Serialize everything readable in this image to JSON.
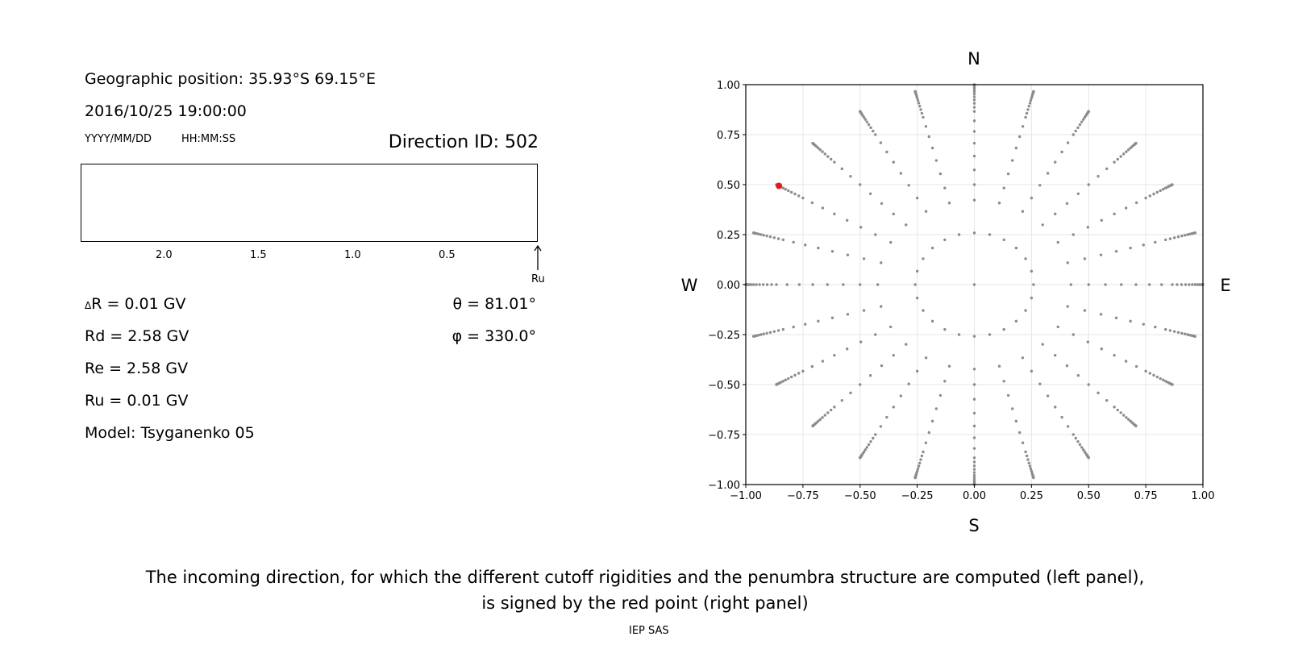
{
  "left_panel": {
    "geo_position": "Geographic position: 35.93°S 69.15°E",
    "datetime": "2016/10/25 19:00:00",
    "date_format": "YYYY/MM/DD",
    "time_format": "HH:MM:SS",
    "direction_id": "Direction ID: 502",
    "axis_ticks": [
      "2.0",
      "1.5",
      "1.0",
      "0.5"
    ],
    "ru_marker_label": "Ru",
    "delta_r_symbol": "Δ",
    "delta_r": "R = 0.01 GV",
    "rd": "Rd = 2.58 GV",
    "re": "Re = 2.58 GV",
    "ru": "Ru = 0.01 GV",
    "model": "Model: Tsyganenko 05",
    "theta": "θ = 81.01°",
    "phi": "φ = 330.0°"
  },
  "chart_data": {
    "type": "scatter",
    "xlim": [
      -1.0,
      1.0
    ],
    "ylim": [
      -1.0,
      1.0
    ],
    "x_ticks": [
      "−1.00",
      "−0.75",
      "−0.50",
      "−0.25",
      "0.00",
      "0.25",
      "0.50",
      "0.75",
      "1.00"
    ],
    "y_ticks": [
      "1.00",
      "0.75",
      "0.50",
      "0.25",
      "0.00",
      "−0.25",
      "−0.50",
      "−0.75",
      "−1.00"
    ],
    "grid": true,
    "compass": {
      "north": "N",
      "south": "S",
      "west": "W",
      "east": "E"
    },
    "point_color": "#8c8c8c",
    "highlight_color": "#e41a1c",
    "grid_directions": {
      "azimuth_step_deg": 15,
      "zenith_angles_deg": [
        0,
        15,
        25,
        30,
        35,
        40,
        45,
        50,
        55,
        60,
        62.5,
        65,
        67.5,
        70,
        72.5,
        75,
        77.5,
        80,
        82,
        84,
        86,
        88,
        90
      ],
      "projection": "r = sin(zenith)"
    },
    "highlight_point": {
      "x": -0.855,
      "y": 0.494
    }
  },
  "caption": {
    "line1": "The incoming direction, for which the different cutoff rigidities and the penumbra structure are computed (left panel),",
    "line2": "is signed by the red point (right panel)"
  },
  "footer": "IEP SAS"
}
